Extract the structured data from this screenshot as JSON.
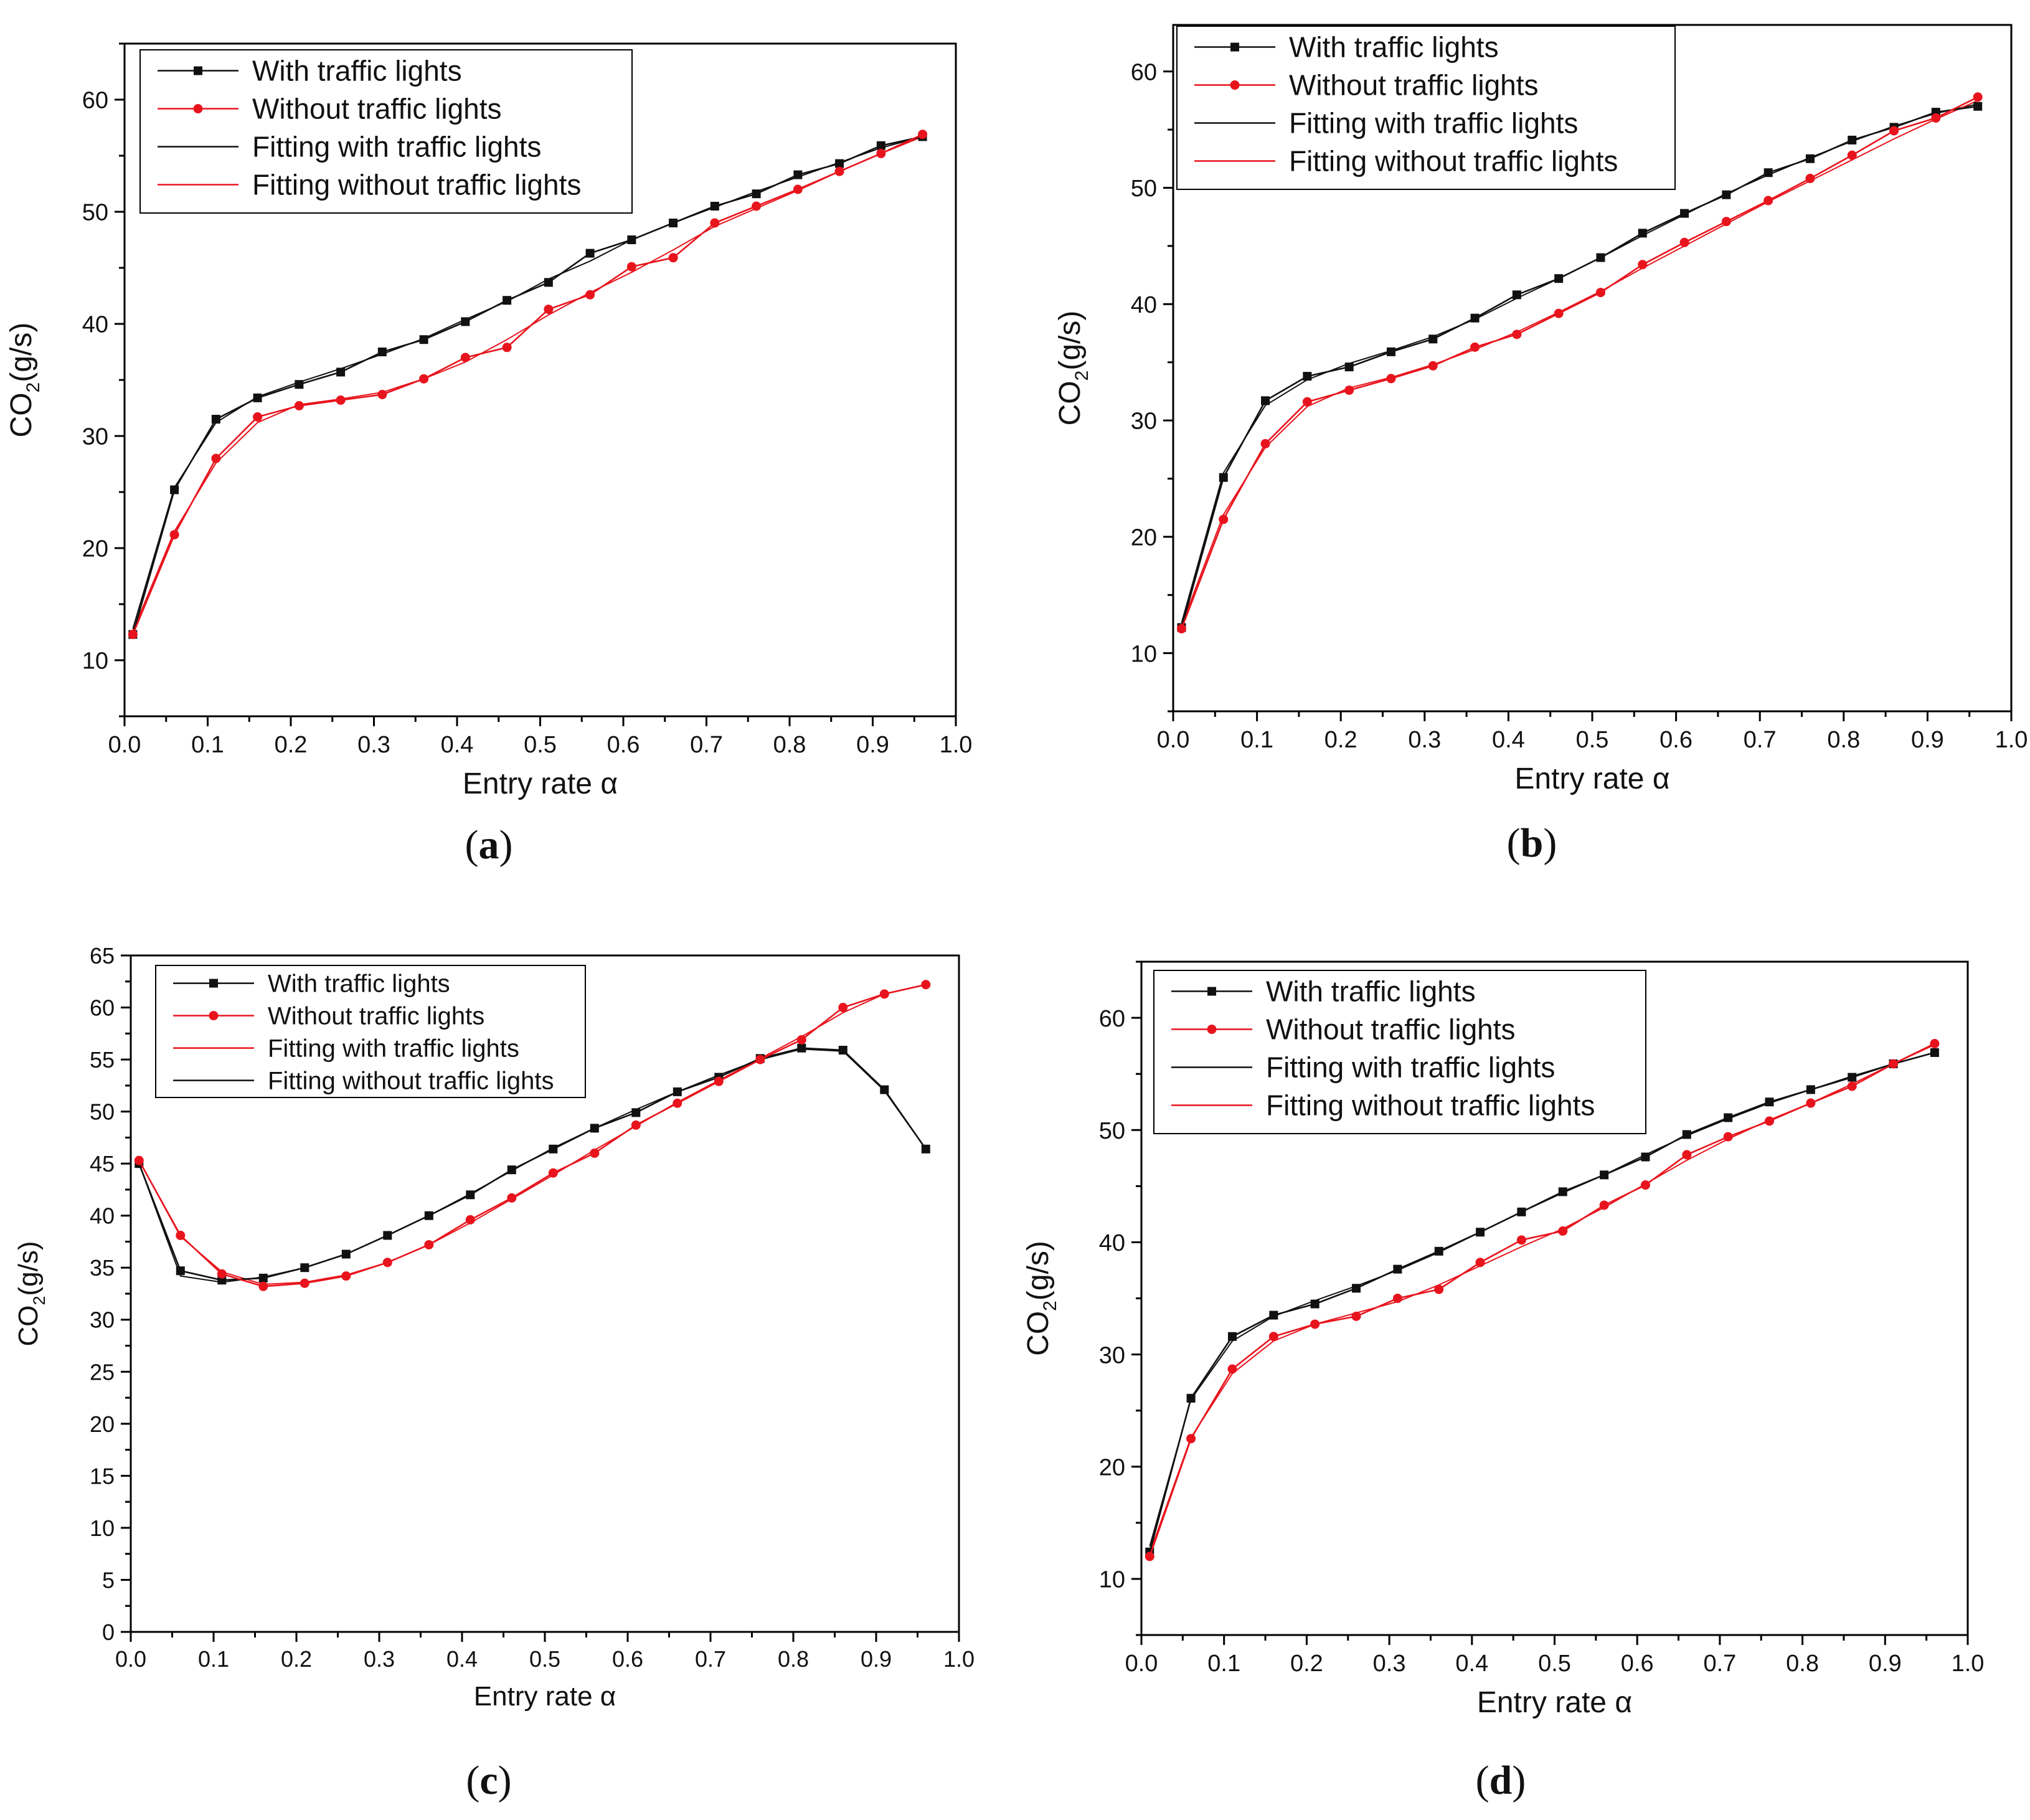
{
  "colors": {
    "with": "#111111",
    "without": "#e8141d"
  },
  "chart_data": [
    {
      "type": "line",
      "panel": "(a)",
      "panel_letter": "a",
      "xlabel": "Entry rate α",
      "ylabel": "CO2(g/s)",
      "ylabel_main": "CO",
      "ylabel_sub": "2",
      "ylabel_rest": "(g/s)",
      "xlim": [
        0,
        1.0
      ],
      "ylim": [
        5,
        65
      ],
      "xticks": [
        0.0,
        0.1,
        0.2,
        0.3,
        0.4,
        0.5,
        0.6,
        0.7,
        0.8,
        0.9,
        1.0
      ],
      "yticks": [
        10,
        20,
        30,
        40,
        50,
        60
      ],
      "legend": [
        {
          "label": "With traffic lights",
          "color": "#111111",
          "marker": "square"
        },
        {
          "label": "Without traffic lights",
          "color": "#e8141d",
          "marker": "circle"
        },
        {
          "label": "Fitting with traffic lights",
          "color": "#111111",
          "marker": "none"
        },
        {
          "label": "Fitting without traffic lights",
          "color": "#e8141d",
          "marker": "none"
        }
      ],
      "x": [
        0.01,
        0.06,
        0.11,
        0.16,
        0.21,
        0.26,
        0.31,
        0.36,
        0.41,
        0.46,
        0.51,
        0.56,
        0.61,
        0.66,
        0.71,
        0.76,
        0.81,
        0.86,
        0.91,
        0.96
      ],
      "series": [
        {
          "name": "With traffic lights",
          "values": [
            12.3,
            25.2,
            31.5,
            33.4,
            34.6,
            35.7,
            37.5,
            38.6,
            40.2,
            42.1,
            43.7,
            46.3,
            47.5,
            49.0,
            50.5,
            51.6,
            53.3,
            54.3,
            55.9,
            56.7
          ]
        },
        {
          "name": "Without traffic lights",
          "values": [
            12.3,
            21.2,
            28.0,
            31.7,
            32.7,
            33.2,
            33.7,
            35.1,
            37.0,
            37.9,
            41.3,
            42.6,
            45.1,
            45.9,
            49.0,
            50.5,
            52.0,
            53.6,
            55.2,
            56.9
          ]
        },
        {
          "name": "Fitting with traffic lights",
          "values": [
            12.8,
            25.4,
            31.2,
            33.5,
            34.8,
            36.0,
            37.3,
            38.7,
            40.4,
            42.0,
            44.0,
            45.6,
            47.5,
            49.0,
            50.4,
            51.8,
            53.1,
            54.4,
            55.7,
            56.7
          ]
        },
        {
          "name": "Fitting without traffic lights",
          "values": [
            12.6,
            21.5,
            27.6,
            31.2,
            32.8,
            33.3,
            33.9,
            35.1,
            36.6,
            38.6,
            40.8,
            42.8,
            44.6,
            46.6,
            48.7,
            50.3,
            51.9,
            53.6,
            55.2,
            56.7
          ]
        }
      ]
    },
    {
      "type": "line",
      "panel": "(b)",
      "panel_letter": "b",
      "xlabel": "Entry rate α",
      "ylabel": "CO2(g/s)",
      "ylabel_main": "CO",
      "ylabel_sub": "2",
      "ylabel_rest": "(g/s)",
      "xlim": [
        0,
        1.0
      ],
      "ylim": [
        5,
        64
      ],
      "xticks": [
        0.0,
        0.1,
        0.2,
        0.3,
        0.4,
        0.5,
        0.6,
        0.7,
        0.8,
        0.9,
        1.0
      ],
      "yticks": [
        10,
        20,
        30,
        40,
        50,
        60
      ],
      "legend": [
        {
          "label": "With traffic lights",
          "color": "#111111",
          "marker": "square"
        },
        {
          "label": "Without traffic lights",
          "color": "#e8141d",
          "marker": "circle"
        },
        {
          "label": "Fitting with traffic lights",
          "color": "#111111",
          "marker": "none"
        },
        {
          "label": "Fitting without traffic lights",
          "color": "#e8141d",
          "marker": "none"
        }
      ],
      "x": [
        0.01,
        0.06,
        0.11,
        0.16,
        0.21,
        0.26,
        0.31,
        0.36,
        0.41,
        0.46,
        0.51,
        0.56,
        0.61,
        0.66,
        0.71,
        0.76,
        0.81,
        0.86,
        0.91,
        0.96
      ],
      "series": [
        {
          "name": "With traffic lights",
          "values": [
            12.2,
            25.1,
            31.7,
            33.8,
            34.6,
            35.9,
            37.0,
            38.8,
            40.8,
            42.2,
            44.0,
            46.1,
            47.8,
            49.4,
            51.3,
            52.5,
            54.1,
            55.2,
            56.5,
            57.0
          ]
        },
        {
          "name": "Without traffic lights",
          "values": [
            12.1,
            21.5,
            28.0,
            31.6,
            32.6,
            33.6,
            34.7,
            36.3,
            37.4,
            39.2,
            41.0,
            43.4,
            45.3,
            47.1,
            48.9,
            50.8,
            52.8,
            54.9,
            56.0,
            57.8
          ]
        },
        {
          "name": "Fitting with traffic lights",
          "values": [
            12.6,
            25.5,
            31.3,
            33.5,
            34.9,
            36.0,
            37.2,
            38.7,
            40.5,
            42.2,
            44.0,
            45.9,
            47.7,
            49.5,
            51.1,
            52.6,
            54.0,
            55.3,
            56.4,
            57.2
          ]
        },
        {
          "name": "Fitting without traffic lights",
          "values": [
            12.4,
            21.9,
            27.7,
            31.2,
            32.8,
            33.7,
            34.8,
            36.1,
            37.6,
            39.3,
            41.1,
            43.1,
            45.0,
            46.9,
            48.8,
            50.6,
            52.4,
            54.2,
            55.9,
            57.5
          ]
        }
      ]
    },
    {
      "type": "line",
      "panel": "(c)",
      "panel_letter": "c",
      "xlabel": "Entry rate α",
      "ylabel": "CO2(g/s)",
      "ylabel_main": "CO",
      "ylabel_sub": "2",
      "ylabel_rest": "(g/s)",
      "xlim": [
        0,
        1.0
      ],
      "ylim": [
        0,
        65
      ],
      "xticks": [
        0.0,
        0.1,
        0.2,
        0.3,
        0.4,
        0.5,
        0.6,
        0.7,
        0.8,
        0.9,
        1.0
      ],
      "yticks": [
        0,
        5,
        10,
        15,
        20,
        25,
        30,
        35,
        40,
        45,
        50,
        55,
        60,
        65
      ],
      "legend": [
        {
          "label": "With traffic lights",
          "color": "#111111",
          "marker": "square"
        },
        {
          "label": "Without traffic lights",
          "color": "#e8141d",
          "marker": "circle"
        },
        {
          "label": "Fitting with traffic lights",
          "color": "#e8141d",
          "marker": "none"
        },
        {
          "label": "Fitting without traffic lights",
          "color": "#111111",
          "marker": "none"
        }
      ],
      "x": [
        0.01,
        0.06,
        0.11,
        0.16,
        0.21,
        0.26,
        0.31,
        0.36,
        0.41,
        0.46,
        0.51,
        0.56,
        0.61,
        0.66,
        0.71,
        0.76,
        0.81,
        0.86,
        0.91,
        0.96
      ],
      "series": [
        {
          "name": "With traffic lights",
          "values": [
            45.0,
            34.7,
            33.8,
            34.0,
            35.0,
            36.3,
            38.1,
            40.0,
            42.0,
            44.4,
            46.4,
            48.4,
            49.9,
            51.9,
            53.3,
            55.1,
            56.1,
            55.9,
            52.1,
            46.4
          ]
        },
        {
          "name": "Without traffic lights",
          "values": [
            45.3,
            38.1,
            34.4,
            33.2,
            33.5,
            34.2,
            35.5,
            37.2,
            39.6,
            41.7,
            44.1,
            46.0,
            48.7,
            50.8,
            52.9,
            55.0,
            56.9,
            60.0,
            61.3,
            62.2
          ]
        },
        {
          "name": "Fitting with traffic lights",
          "values": [
            45.3,
            38.0,
            34.6,
            33.4,
            33.6,
            34.3,
            35.5,
            37.2,
            39.3,
            41.6,
            43.9,
            46.3,
            48.6,
            50.9,
            53.0,
            55.1,
            57.2,
            59.5,
            61.3,
            62.2
          ]
        },
        {
          "name": "Fitting without traffic lights",
          "values": [
            45.0,
            34.2,
            33.6,
            34.1,
            35.0,
            36.3,
            38.1,
            40.0,
            42.1,
            44.3,
            46.5,
            48.4,
            50.2,
            51.9,
            53.5,
            55.0,
            56.0,
            55.8,
            52.0,
            46.4
          ]
        }
      ]
    },
    {
      "type": "line",
      "panel": "(d)",
      "panel_letter": "d",
      "xlabel": "Entry rate α",
      "ylabel": "CO2(g/s)",
      "ylabel_main": "CO",
      "ylabel_sub": "2",
      "ylabel_rest": "(g/s)",
      "xlim": [
        0,
        1.0
      ],
      "ylim": [
        5,
        65
      ],
      "xticks": [
        0.0,
        0.1,
        0.2,
        0.3,
        0.4,
        0.5,
        0.6,
        0.7,
        0.8,
        0.9,
        1.0
      ],
      "yticks": [
        10,
        20,
        30,
        40,
        50,
        60
      ],
      "legend": [
        {
          "label": "With traffic lights",
          "color": "#111111",
          "marker": "square"
        },
        {
          "label": "Without traffic lights",
          "color": "#e8141d",
          "marker": "circle"
        },
        {
          "label": "Fitting with traffic lights",
          "color": "#111111",
          "marker": "none"
        },
        {
          "label": "Fitting without traffic lights",
          "color": "#e8141d",
          "marker": "none"
        }
      ],
      "x": [
        0.01,
        0.06,
        0.11,
        0.16,
        0.21,
        0.26,
        0.31,
        0.36,
        0.41,
        0.46,
        0.51,
        0.56,
        0.61,
        0.66,
        0.71,
        0.76,
        0.81,
        0.86,
        0.91,
        0.96
      ],
      "series": [
        {
          "name": "With traffic lights",
          "values": [
            12.4,
            26.1,
            31.6,
            33.5,
            34.5,
            35.9,
            37.6,
            39.2,
            40.9,
            42.7,
            44.5,
            46.0,
            47.6,
            49.6,
            51.1,
            52.5,
            53.6,
            54.7,
            55.9,
            56.9
          ]
        },
        {
          "name": "Without traffic lights",
          "values": [
            12.0,
            22.5,
            28.7,
            31.6,
            32.7,
            33.4,
            35.0,
            35.8,
            38.2,
            40.2,
            41.0,
            43.3,
            45.1,
            47.8,
            49.4,
            50.8,
            52.4,
            53.9,
            55.9,
            57.7
          ]
        },
        {
          "name": "Fitting with traffic lights",
          "values": [
            12.9,
            26.0,
            31.2,
            33.4,
            34.8,
            36.1,
            37.5,
            39.1,
            40.9,
            42.7,
            44.4,
            46.0,
            47.8,
            49.5,
            51.0,
            52.4,
            53.6,
            54.8,
            55.9,
            56.9
          ]
        },
        {
          "name": "Fitting without traffic lights",
          "values": [
            12.3,
            22.6,
            28.3,
            31.2,
            32.7,
            33.7,
            34.7,
            36.2,
            37.9,
            39.6,
            41.2,
            43.1,
            45.2,
            47.3,
            49.2,
            50.9,
            52.4,
            54.1,
            55.9,
            57.6
          ]
        }
      ]
    }
  ]
}
